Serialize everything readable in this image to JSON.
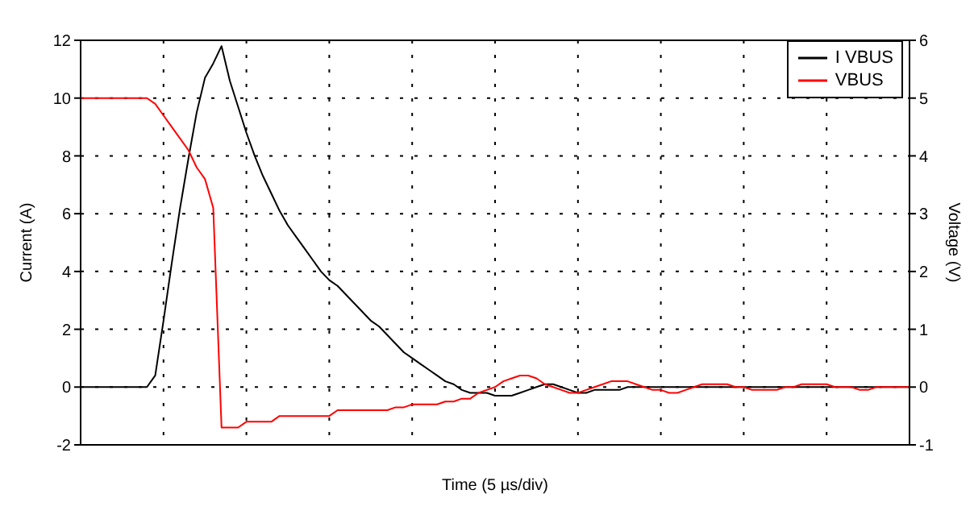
{
  "chart_data": {
    "type": "line",
    "xlabel": "Time (5 µs/div)",
    "ylabel": "Current (A)",
    "y2label": "Voltage (V)",
    "categories": [
      null,
      null,
      null,
      null,
      null,
      null,
      null,
      null,
      null,
      null,
      null,
      null,
      null,
      null,
      null,
      null,
      null,
      null,
      null,
      null,
      null,
      null,
      null,
      null,
      null,
      null,
      null,
      null,
      null,
      null,
      null,
      null,
      null,
      null,
      null,
      null,
      null,
      null,
      null,
      null,
      null,
      null,
      null,
      null,
      null,
      null,
      null,
      null,
      null,
      null,
      null,
      null,
      null,
      null,
      null,
      null,
      null,
      null,
      null,
      null,
      null,
      null,
      null,
      null,
      null,
      null,
      null,
      null,
      null,
      null,
      null,
      null,
      null,
      null,
      null,
      null,
      null,
      null,
      null,
      null,
      null,
      null,
      null,
      null,
      null,
      null,
      null,
      null,
      null,
      null,
      null,
      null,
      null,
      null,
      null,
      null,
      null,
      null,
      null,
      null,
      null
    ],
    "ylim": [
      -2,
      12
    ],
    "yticks": [
      -2,
      0,
      2,
      4,
      6,
      8,
      10,
      12
    ],
    "y2lim": [
      -1,
      6
    ],
    "y2ticks": [
      -1,
      0,
      1,
      2,
      3,
      4,
      5,
      6
    ],
    "grid": true,
    "line_style": "solid",
    "marker": "none",
    "legend": "top right",
    "series": [
      {
        "name": "I VBUS",
        "color": "#000000",
        "values": [
          0,
          0,
          0,
          0,
          0,
          0,
          0,
          0,
          0,
          0.4,
          2.3,
          4.3,
          6.2,
          7.9,
          9.5,
          10.7,
          11.2,
          11.8,
          10.6,
          9.7,
          8.8,
          8.0,
          7.3,
          6.7,
          6.1,
          5.6,
          5.2,
          4.8,
          4.4,
          4.0,
          3.7,
          3.5,
          3.2,
          2.9,
          2.6,
          2.3,
          2.1,
          1.8,
          1.5,
          1.2,
          1.0,
          0.8,
          0.6,
          0.4,
          0.2,
          0.1,
          -0.1,
          -0.2,
          -0.2,
          -0.2,
          -0.3,
          -0.3,
          -0.3,
          -0.2,
          -0.1,
          0,
          0.1,
          0.1,
          0,
          -0.1,
          -0.2,
          -0.2,
          -0.1,
          -0.1,
          -0.1,
          -0.1,
          0,
          0,
          0,
          0,
          0,
          0,
          0,
          0,
          0,
          0,
          0,
          0,
          0,
          0,
          0,
          0,
          0,
          0,
          0,
          0,
          0,
          0,
          0,
          0,
          0,
          0,
          0,
          0,
          0,
          0,
          0,
          0,
          0,
          0,
          0
        ]
      },
      {
        "name": "VBUS",
        "color": "#ff0000",
        "axis": "y2",
        "values": [
          5,
          5,
          5,
          5,
          5,
          5,
          5,
          5,
          5,
          4.9,
          4.7,
          4.5,
          4.3,
          4.1,
          3.8,
          3.6,
          3.1,
          -0.7,
          -0.7,
          -0.7,
          -0.6,
          -0.6,
          -0.6,
          -0.6,
          -0.5,
          -0.5,
          -0.5,
          -0.5,
          -0.5,
          -0.5,
          -0.5,
          -0.4,
          -0.4,
          -0.4,
          -0.4,
          -0.4,
          -0.4,
          -0.4,
          -0.35,
          -0.35,
          -0.3,
          -0.3,
          -0.3,
          -0.3,
          -0.25,
          -0.25,
          -0.2,
          -0.2,
          -0.1,
          -0.05,
          0,
          0.1,
          0.15,
          0.2,
          0.2,
          0.15,
          0.05,
          0,
          -0.05,
          -0.1,
          -0.1,
          -0.05,
          0,
          0.05,
          0.1,
          0.1,
          0.1,
          0.05,
          0,
          -0.05,
          -0.05,
          -0.1,
          -0.1,
          -0.05,
          0,
          0.05,
          0.05,
          0.05,
          0.05,
          0,
          0,
          -0.05,
          -0.05,
          -0.05,
          -0.05,
          0,
          0,
          0.05,
          0.05,
          0.05,
          0.05,
          0,
          0,
          0,
          -0.05,
          -0.05,
          0,
          0,
          0,
          0,
          0
        ]
      }
    ]
  }
}
